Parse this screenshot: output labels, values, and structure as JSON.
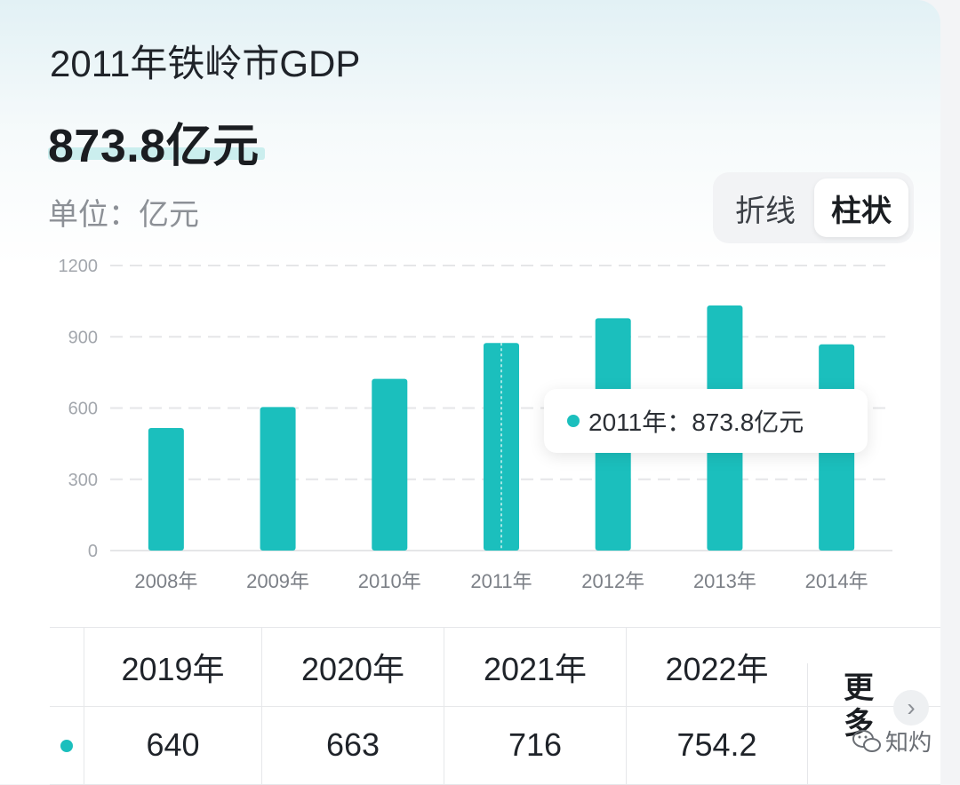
{
  "header": {
    "title": "2011年铁岭市GDP",
    "value": "873.8亿元",
    "unit_label": "单位：亿元"
  },
  "toggle": {
    "line_label": "折线",
    "bar_label": "柱状",
    "active": "柱状"
  },
  "chart_data": {
    "type": "bar",
    "categories": [
      "2008年",
      "2009年",
      "2010年",
      "2011年",
      "2012年",
      "2013年",
      "2014年"
    ],
    "values": [
      516,
      604,
      723,
      873.8,
      978,
      1032,
      868
    ],
    "ylim": [
      0,
      1200
    ],
    "yticks": [
      "0",
      "300",
      "600",
      "900",
      "1200"
    ],
    "grid": true,
    "highlighted_index": 3,
    "color": "#1bbfbd"
  },
  "tooltip": {
    "text": "2011年：873.8亿元"
  },
  "table": {
    "years": [
      "2019年",
      "2020年",
      "2021年",
      "2022年"
    ],
    "values": [
      "640",
      "663",
      "716",
      "754.2"
    ],
    "more_label": "更多"
  },
  "watermark": {
    "text": "知灼"
  },
  "colors": {
    "accent": "#1bbfbd",
    "grid": "#e5e6e8"
  }
}
